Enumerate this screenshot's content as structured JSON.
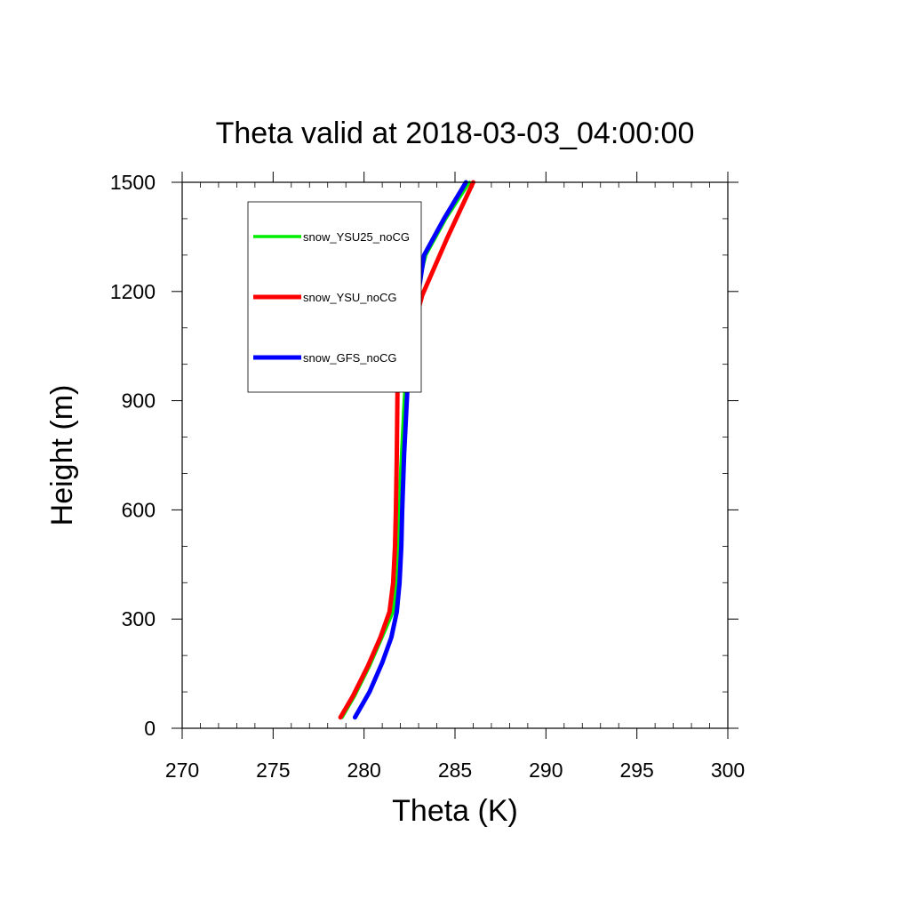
{
  "chart_data": {
    "type": "line",
    "title": "Theta valid at 2018-03-03_04:00:00",
    "xlabel": "Theta (K)",
    "ylabel": "Height (m)",
    "xlim": [
      270,
      300
    ],
    "ylim": [
      0,
      1500
    ],
    "xticks": [
      270,
      275,
      280,
      285,
      290,
      295,
      300
    ],
    "yticks": [
      0,
      300,
      600,
      900,
      1200,
      1500
    ],
    "xtick_labels": [
      "270",
      "275",
      "280",
      "285",
      "290",
      "295",
      "300"
    ],
    "ytick_labels": [
      "0",
      "300",
      "600",
      "900",
      "1200",
      "1500"
    ],
    "grid": false,
    "legend_position": "top-left",
    "series": [
      {
        "name": "snow_YSU25_noCG",
        "color": "#00ee00",
        "x": [
          278.8,
          279.5,
          280.3,
          281.0,
          281.6,
          281.8,
          281.9,
          281.95,
          282.0,
          282.2,
          282.4,
          282.8,
          283.4,
          284.5,
          285.8
        ],
        "y": [
          30,
          90,
          170,
          250,
          320,
          400,
          500,
          600,
          700,
          900,
          1050,
          1180,
          1300,
          1400,
          1500
        ]
      },
      {
        "name": "snow_YSU_noCG",
        "color": "#ff0000",
        "x": [
          278.7,
          279.4,
          280.2,
          280.9,
          281.4,
          281.6,
          281.7,
          281.75,
          281.8,
          281.85,
          282.5,
          283.2,
          284.6,
          286.0
        ],
        "y": [
          30,
          90,
          170,
          250,
          320,
          400,
          500,
          600,
          750,
          980,
          1060,
          1190,
          1350,
          1500
        ]
      },
      {
        "name": "snow_GFS_noCG",
        "color": "#0000ff",
        "x": [
          279.5,
          280.3,
          281.0,
          281.5,
          281.8,
          281.95,
          282.05,
          282.1,
          282.2,
          282.4,
          282.7,
          283.3,
          284.4,
          285.6
        ],
        "y": [
          30,
          100,
          180,
          250,
          320,
          400,
          500,
          600,
          750,
          950,
          1100,
          1300,
          1400,
          1500
        ]
      }
    ]
  }
}
